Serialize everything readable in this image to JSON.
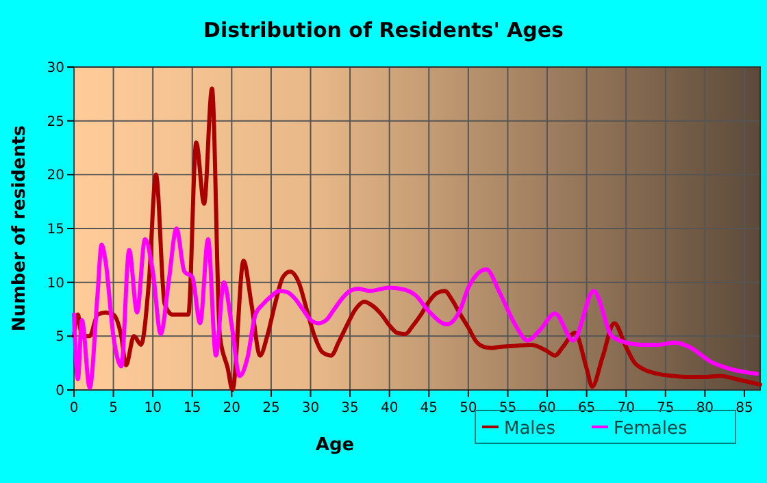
{
  "chart_data": {
    "type": "line",
    "title": "Distribution of Residents' Ages",
    "xlabel": "Age",
    "ylabel": "Number of residents",
    "xlim": [
      0,
      87
    ],
    "xticks": [
      0,
      5,
      10,
      15,
      20,
      25,
      30,
      35,
      40,
      45,
      50,
      55,
      60,
      65,
      70,
      75,
      80,
      85
    ],
    "ylim": [
      0,
      30
    ],
    "yticks": [
      0,
      5,
      10,
      15,
      20,
      25,
      30
    ],
    "grid": true,
    "legend": "bottom right",
    "marker": "none",
    "line_style": "solid",
    "series": [
      {
        "name": "Males",
        "color": "#aa0000",
        "x": [
          0,
          0.5,
          1,
          2,
          3,
          4,
          5,
          6,
          6.6,
          7.6,
          8.5,
          9.5,
          10.4,
          11.5,
          12.5,
          13.5,
          14.5,
          15.5,
          16.5,
          17.5,
          18.5,
          19.5,
          20.1,
          21.5,
          22.5,
          23.6,
          24.5,
          25.5,
          26.5,
          27.4,
          28.5,
          29.5,
          30.5,
          31.5,
          32.6,
          33.6,
          34.6,
          35.7,
          36.8,
          37.9,
          39,
          40,
          41,
          42,
          43,
          44,
          45,
          46,
          47,
          48,
          49,
          50,
          51,
          52,
          53,
          54,
          56,
          58,
          60,
          61,
          62,
          63.5,
          65,
          65.7,
          67,
          68.5,
          70,
          71,
          72.3,
          74,
          76,
          78,
          80,
          82,
          84,
          87
        ],
        "values": [
          5,
          7,
          5,
          5,
          7,
          7.2,
          7,
          5,
          2.3,
          5,
          4.2,
          10,
          20,
          8,
          7,
          7,
          7,
          23,
          17.3,
          28,
          5,
          2,
          0,
          12,
          8,
          3.2,
          5,
          8,
          10.5,
          11,
          10,
          7.5,
          5,
          3.5,
          3.2,
          4.5,
          6,
          7.5,
          8.2,
          7.8,
          7,
          6,
          5.3,
          5.2,
          6,
          7,
          8.2,
          9,
          9.2,
          8.3,
          7,
          5.8,
          4.5,
          4,
          3.9,
          4,
          4.1,
          4.2,
          3.6,
          3.2,
          4,
          5.3,
          2,
          0.3,
          3,
          6.2,
          4,
          2.6,
          1.9,
          1.5,
          1.3,
          1.2,
          1.2,
          1.3,
          1,
          0.5
        ]
      },
      {
        "name": "Females",
        "color": "#ff00ff",
        "x": [
          0,
          0.5,
          1,
          2,
          3,
          3.5,
          4,
          5,
          6,
          7,
          8,
          9,
          10,
          11,
          12,
          13,
          14,
          15,
          16,
          17,
          18,
          19,
          20,
          21,
          22,
          23,
          24,
          25,
          26,
          27,
          28,
          29,
          30,
          31,
          32,
          33,
          34,
          35,
          36,
          37.5,
          40,
          42,
          43.3,
          45,
          47.3,
          49,
          50,
          52.3,
          54,
          56,
          57.5,
          59,
          61,
          63.3,
          65.9,
          68.2,
          70,
          72,
          74,
          76.2,
          78,
          80.8,
          83,
          86.6
        ],
        "values": [
          7,
          1,
          6.5,
          0.2,
          9,
          13.5,
          12,
          5,
          2.2,
          13,
          7.2,
          14,
          11,
          5.2,
          10,
          15,
          11,
          10.5,
          6.2,
          14,
          3.2,
          10,
          6,
          1.3,
          3,
          7,
          8,
          8.7,
          9.2,
          9.1,
          8.5,
          7.5,
          6.5,
          6.2,
          6.5,
          7.5,
          8.5,
          9.2,
          9.4,
          9.2,
          9.5,
          9.3,
          8.8,
          7.3,
          6.1,
          7.5,
          9.5,
          11.2,
          9,
          6,
          4.6,
          5.5,
          7.1,
          4.6,
          9.2,
          5,
          4.4,
          4.2,
          4.2,
          4.4,
          4,
          2.6,
          2,
          1.5
        ]
      }
    ]
  }
}
